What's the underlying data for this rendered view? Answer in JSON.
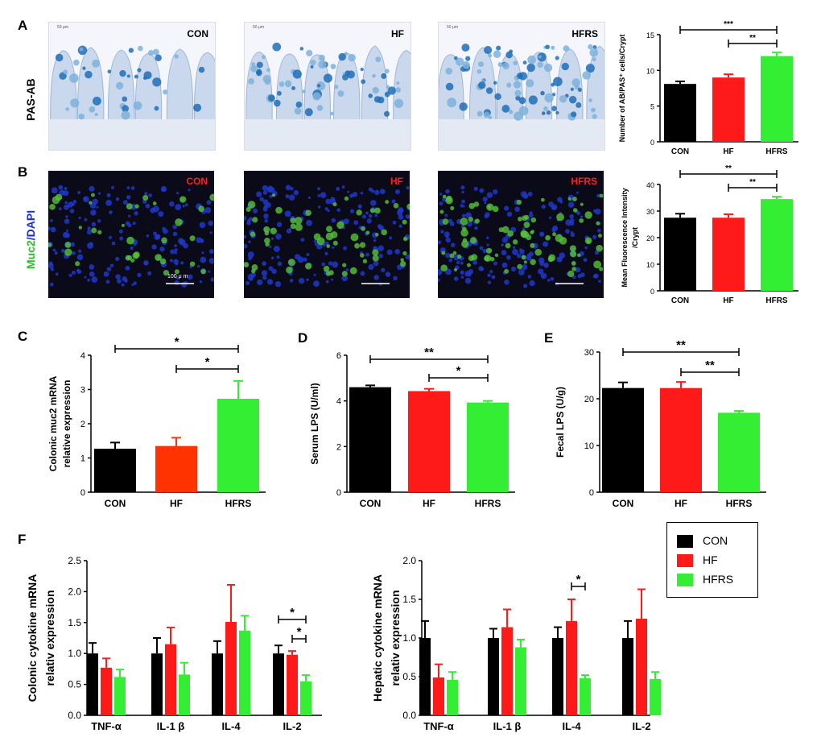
{
  "colors": {
    "CON": "#000000",
    "HF": "#ff1a1a",
    "HF_C": "#ff3300",
    "HFRS": "#33ee33",
    "pas_bg": "#f4f6fb",
    "pas_cell": "#7fb2dc",
    "pas_goblet": "#1f6fb8",
    "if_bg": "#0a0a18",
    "if_nuc": "#1f37c8",
    "if_muc": "#55c23a"
  },
  "panels": {
    "A": "A",
    "B": "B",
    "C": "C",
    "D": "D",
    "E": "E",
    "F": "F"
  },
  "row_labels": {
    "pas": "PAS-AB",
    "muc2": "Muc2",
    "dapi": "DAPI",
    "slash": "/"
  },
  "micrographs": {
    "pas": [
      "CON",
      "HF",
      "HFRS"
    ],
    "if": [
      "CON",
      "HF",
      "HFRS"
    ],
    "scale_bar_text": "100 μ m",
    "pas_scale_text": "50 μm"
  },
  "legend": {
    "items": [
      "CON",
      "HF",
      "HFRS"
    ]
  },
  "chart_data": [
    {
      "id": "A",
      "type": "bar",
      "categories": [
        "CON",
        "HF",
        "HFRS"
      ],
      "values": [
        8.1,
        9.0,
        12.0
      ],
      "errors": [
        0.35,
        0.45,
        0.5
      ],
      "ylabel": "Number of AB/PAS⁺ cells/Crypt",
      "ylim": [
        0,
        15
      ],
      "yticks": [
        0,
        5,
        10,
        15
      ],
      "significance": [
        {
          "from": 0,
          "to": 2,
          "label": "***"
        },
        {
          "from": 1,
          "to": 2,
          "label": "**"
        }
      ]
    },
    {
      "id": "B",
      "type": "bar",
      "categories": [
        "CON",
        "HF",
        "HFRS"
      ],
      "values": [
        27.5,
        27.5,
        34.5
      ],
      "errors": [
        1.5,
        1.3,
        0.9
      ],
      "ylabel": "Mean Fluorescence Intensity",
      "ylabel2": "/Crypt",
      "ylim": [
        0,
        40
      ],
      "yticks": [
        0,
        10,
        20,
        30,
        40
      ],
      "significance": [
        {
          "from": 0,
          "to": 2,
          "label": "**"
        },
        {
          "from": 1,
          "to": 2,
          "label": "**"
        }
      ]
    },
    {
      "id": "C",
      "type": "bar",
      "categories": [
        "CON",
        "HF",
        "HFRS"
      ],
      "values": [
        1.27,
        1.35,
        2.73
      ],
      "errors": [
        0.18,
        0.24,
        0.52
      ],
      "ylabel": "Colonic muc2 mRNA",
      "ylabel2": "relative expression",
      "ylim": [
        0,
        4
      ],
      "yticks": [
        0,
        1,
        2,
        3,
        4
      ],
      "significance": [
        {
          "from": 0,
          "to": 2,
          "label": "*"
        },
        {
          "from": 1,
          "to": 2,
          "label": "*"
        }
      ]
    },
    {
      "id": "D",
      "type": "bar",
      "categories": [
        "CON",
        "HF",
        "HFRS"
      ],
      "values": [
        4.6,
        4.43,
        3.93
      ],
      "errors": [
        0.08,
        0.1,
        0.07
      ],
      "ylabel": "Serum LPS (U/ml)",
      "ylim": [
        0,
        6
      ],
      "yticks": [
        0,
        2,
        4,
        6
      ],
      "significance": [
        {
          "from": 0,
          "to": 2,
          "label": "**"
        },
        {
          "from": 1,
          "to": 2,
          "label": "*"
        }
      ]
    },
    {
      "id": "E",
      "type": "bar",
      "categories": [
        "CON",
        "HF",
        "HFRS"
      ],
      "values": [
        22.3,
        22.3,
        17.0
      ],
      "errors": [
        1.2,
        1.3,
        0.4
      ],
      "ylabel": "Fecal LPS (U/g)",
      "ylim": [
        0,
        30
      ],
      "yticks": [
        0,
        10,
        20,
        30
      ],
      "significance": [
        {
          "from": 0,
          "to": 2,
          "label": "**"
        },
        {
          "from": 1,
          "to": 2,
          "label": "**"
        }
      ]
    },
    {
      "id": "F1",
      "type": "bar",
      "categories": [
        "TNF-α",
        "IL-1 β",
        "IL-4",
        "IL-2"
      ],
      "series": [
        {
          "name": "CON",
          "values": [
            1.0,
            1.0,
            1.0,
            1.0
          ],
          "errors": [
            0.17,
            0.25,
            0.2,
            0.13
          ]
        },
        {
          "name": "HF",
          "values": [
            0.77,
            1.15,
            1.51,
            0.98
          ],
          "errors": [
            0.15,
            0.27,
            0.6,
            0.06
          ]
        },
        {
          "name": "HFRS",
          "values": [
            0.62,
            0.66,
            1.37,
            0.55
          ],
          "errors": [
            0.12,
            0.19,
            0.24,
            0.1
          ]
        }
      ],
      "ylabel": "Colonic cytokine mRNA",
      "ylabel2": "relativ expression",
      "ylim": [
        0,
        2.5
      ],
      "yticks": [
        "0.0",
        "0.5",
        "1.0",
        "1.5",
        "2.0",
        "2.5"
      ],
      "significance": [
        {
          "cat": 3,
          "from": 0,
          "to": 2,
          "label": "*"
        },
        {
          "cat": 3,
          "from": 1,
          "to": 2,
          "label": "*"
        }
      ]
    },
    {
      "id": "F2",
      "type": "bar",
      "categories": [
        "TNF-α",
        "IL-1 β",
        "IL-4",
        "IL-2"
      ],
      "series": [
        {
          "name": "CON",
          "values": [
            1.0,
            1.0,
            1.0,
            1.0
          ],
          "errors": [
            0.22,
            0.12,
            0.14,
            0.22
          ]
        },
        {
          "name": "HF",
          "values": [
            0.49,
            1.14,
            1.22,
            1.25
          ],
          "errors": [
            0.17,
            0.23,
            0.28,
            0.38
          ]
        },
        {
          "name": "HFRS",
          "values": [
            0.46,
            0.88,
            0.48,
            0.47
          ],
          "errors": [
            0.1,
            0.1,
            0.04,
            0.09
          ]
        }
      ],
      "ylabel": "Hepatic cytokine mRNA",
      "ylabel2": "relativ expression",
      "ylim": [
        0,
        2.0
      ],
      "yticks": [
        "0.0",
        "0.5",
        "1.0",
        "1.5",
        "2.0"
      ],
      "significance": [
        {
          "cat": 2,
          "from": 1,
          "to": 2,
          "label": "*"
        }
      ]
    }
  ]
}
